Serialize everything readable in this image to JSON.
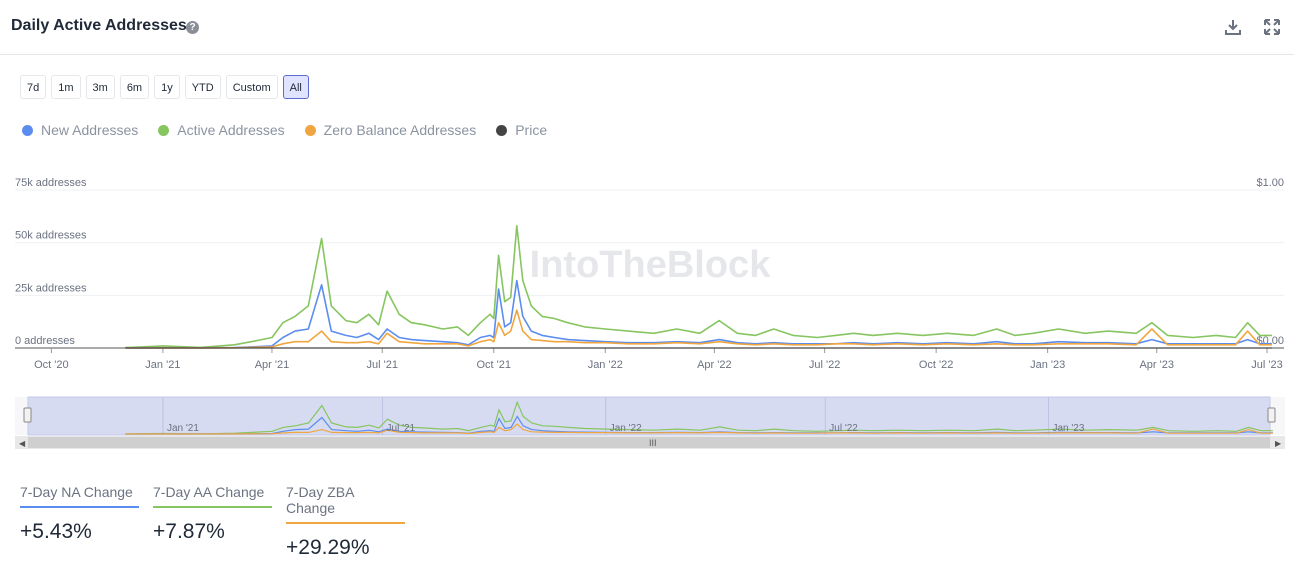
{
  "header": {
    "title": "Daily Active Addresses",
    "help_icon": "question-circle-icon",
    "download_icon": "download-icon",
    "expand_icon": "expand-icon"
  },
  "ranges": [
    {
      "label": "7d",
      "active": false
    },
    {
      "label": "1m",
      "active": false
    },
    {
      "label": "3m",
      "active": false
    },
    {
      "label": "6m",
      "active": false
    },
    {
      "label": "1y",
      "active": false
    },
    {
      "label": "YTD",
      "active": false
    },
    {
      "label": "Custom",
      "active": false
    },
    {
      "label": "All",
      "active": true
    }
  ],
  "legend": [
    {
      "label": "New Addresses",
      "color": "#5b8def"
    },
    {
      "label": "Active Addresses",
      "color": "#86c55f"
    },
    {
      "label": "Zero Balance Addresses",
      "color": "#f0a640"
    },
    {
      "label": "Price",
      "color": "#444444"
    }
  ],
  "watermark": "IntoTheBlock",
  "chart_data": {
    "type": "line",
    "x_range": [
      "2020-09",
      "2023-07"
    ],
    "x_ticks": [
      "Oct '20",
      "Jan '21",
      "Apr '21",
      "Jul '21",
      "Oct '21",
      "Jan '22",
      "Apr '22",
      "Jul '22",
      "Oct '22",
      "Jan '23",
      "Apr '23",
      "Jul '23"
    ],
    "y_left": {
      "ticks": [
        "0 addresses",
        "25k addresses",
        "50k addresses",
        "75k addresses"
      ],
      "range": [
        0,
        75000
      ]
    },
    "y_right": {
      "ticks": [
        "$0.00",
        "$1.00"
      ],
      "range": [
        0,
        1
      ]
    },
    "navigator_ticks": [
      "Jan '21",
      "Jul '21",
      "Jan '22",
      "Jul '22",
      "Jan '23"
    ],
    "x": [
      "2020-12-01",
      "2021-01-01",
      "2021-02-01",
      "2021-03-01",
      "2021-03-15",
      "2021-04-01",
      "2021-04-10",
      "2021-04-20",
      "2021-05-01",
      "2021-05-12",
      "2021-05-20",
      "2021-06-01",
      "2021-06-10",
      "2021-06-20",
      "2021-06-28",
      "2021-07-05",
      "2021-07-15",
      "2021-07-25",
      "2021-08-05",
      "2021-08-20",
      "2021-09-01",
      "2021-09-10",
      "2021-09-20",
      "2021-09-28",
      "2021-10-01",
      "2021-10-05",
      "2021-10-10",
      "2021-10-15",
      "2021-10-20",
      "2021-10-25",
      "2021-11-01",
      "2021-11-10",
      "2021-11-20",
      "2021-12-01",
      "2021-12-15",
      "2022-01-01",
      "2022-01-20",
      "2022-02-10",
      "2022-03-01",
      "2022-03-20",
      "2022-04-05",
      "2022-04-20",
      "2022-05-05",
      "2022-05-20",
      "2022-06-05",
      "2022-06-25",
      "2022-07-10",
      "2022-07-25",
      "2022-08-10",
      "2022-08-30",
      "2022-09-20",
      "2022-10-10",
      "2022-11-01",
      "2022-11-20",
      "2022-12-05",
      "2022-12-20",
      "2023-01-10",
      "2023-02-01",
      "2023-02-20",
      "2023-03-15",
      "2023-03-28",
      "2023-04-10",
      "2023-05-01",
      "2023-05-20",
      "2023-06-05",
      "2023-06-15",
      "2023-06-25",
      "2023-07-05"
    ],
    "series": [
      {
        "name": "Active Addresses",
        "color": "#86c55f",
        "values": [
          200,
          1000,
          300,
          1500,
          3000,
          5000,
          12000,
          15000,
          20000,
          52000,
          20000,
          13000,
          12000,
          16000,
          11000,
          27000,
          16000,
          12000,
          11000,
          9000,
          10000,
          6000,
          12000,
          16000,
          14000,
          44000,
          22000,
          24000,
          58000,
          32000,
          20000,
          15000,
          14000,
          12000,
          10000,
          9000,
          8000,
          7000,
          9000,
          7000,
          13000,
          7000,
          6000,
          9000,
          6000,
          5000,
          6000,
          7000,
          6000,
          7000,
          6000,
          7000,
          6000,
          9000,
          6000,
          7000,
          9000,
          7000,
          8000,
          7000,
          12000,
          6000,
          5000,
          6000,
          5000,
          12000,
          6000,
          6000
        ]
      },
      {
        "name": "New Addresses",
        "color": "#5b8def",
        "values": [
          0,
          100,
          100,
          200,
          500,
          1000,
          5000,
          8000,
          9000,
          30000,
          8000,
          6000,
          5000,
          7000,
          4000,
          9000,
          5000,
          4000,
          3500,
          3000,
          2500,
          1500,
          5000,
          6000,
          5000,
          28000,
          10000,
          12000,
          32000,
          15000,
          8000,
          6000,
          5000,
          4000,
          3500,
          3000,
          2500,
          2500,
          3000,
          2500,
          4000,
          2500,
          2000,
          2500,
          2000,
          2000,
          2000,
          2500,
          2000,
          2500,
          2000,
          2500,
          2000,
          3000,
          2000,
          2000,
          3000,
          2500,
          2500,
          2000,
          4000,
          2000,
          2000,
          2000,
          2000,
          4000,
          2000,
          2000
        ]
      },
      {
        "name": "Zero Balance Addresses",
        "color": "#f0a640",
        "values": [
          0,
          50,
          50,
          100,
          300,
          500,
          2000,
          3000,
          3000,
          8000,
          3000,
          2500,
          2500,
          3000,
          2000,
          7000,
          3000,
          2500,
          2000,
          2000,
          2000,
          1000,
          3000,
          4000,
          3000,
          12000,
          6000,
          8000,
          18000,
          8000,
          4000,
          3500,
          3000,
          3000,
          2500,
          2500,
          2000,
          2000,
          2500,
          2000,
          3000,
          2000,
          1500,
          2000,
          1500,
          1500,
          2000,
          2000,
          1500,
          2000,
          1500,
          2000,
          1500,
          2000,
          1500,
          1500,
          2000,
          2000,
          2000,
          1500,
          9000,
          1500,
          1500,
          1500,
          1500,
          8000,
          1500,
          1500
        ]
      },
      {
        "name": "Price",
        "color": "#444444",
        "values": [
          0,
          0,
          0,
          0,
          0,
          0,
          0,
          0,
          0,
          0,
          0,
          0,
          0,
          0,
          0,
          0,
          0,
          0,
          0,
          0,
          0,
          0,
          0,
          0,
          0,
          0,
          0,
          0,
          0,
          0,
          0,
          0,
          0,
          0,
          0,
          0,
          0,
          0,
          0,
          0,
          0,
          0,
          0,
          0,
          0,
          0,
          0,
          0,
          0,
          0,
          0,
          0,
          0,
          0,
          0,
          0,
          0,
          0,
          0,
          0,
          0,
          0,
          0,
          0,
          0,
          0,
          0,
          0
        ]
      }
    ]
  },
  "stats": [
    {
      "label": "7-Day NA Change",
      "value": "+5.43%",
      "color": "#5b8def"
    },
    {
      "label": "7-Day AA Change",
      "value": "+7.87%",
      "color": "#86c55f"
    },
    {
      "label": "7-Day ZBA Change",
      "value": "+29.29%",
      "color": "#f0a640"
    }
  ]
}
